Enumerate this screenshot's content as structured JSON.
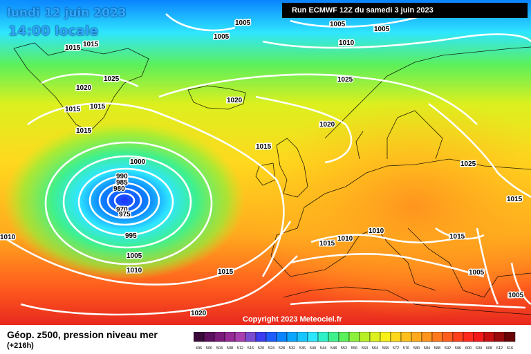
{
  "title": {
    "date": "lundi 12 juin 2023",
    "time": "14:00 locale"
  },
  "run_info": "Run ECMWF 12Z du samedi 3 juin 2023",
  "copyright": "Copyright 2023 Meteociel.fr",
  "footer": {
    "label": "Géop. z500, pression niveau mer",
    "forecast_hour": "(+216h)"
  },
  "pressure_labels": [
    "1015",
    "1015",
    "1005",
    "1005",
    "1005",
    "1005",
    "1010",
    "1020",
    "1025",
    "1025",
    "1015",
    "1015",
    "1015",
    "1020",
    "1020",
    "1015",
    "1000",
    "990",
    "985",
    "980",
    "970",
    "975",
    "995",
    "1005",
    "1010",
    "1010",
    "1015",
    "1015",
    "1010",
    "1010",
    "1020",
    "1005",
    "1005",
    "1015",
    "1025",
    "1015"
  ],
  "legend": {
    "ticks": [
      "496",
      "500",
      "504",
      "508",
      "512",
      "516",
      "520",
      "524",
      "528",
      "532",
      "536",
      "540",
      "544",
      "548",
      "552",
      "556",
      "560",
      "564",
      "568",
      "572",
      "576",
      "580",
      "584",
      "588",
      "592",
      "596",
      "600",
      "604",
      "608",
      "612",
      "616"
    ],
    "colors": [
      "#3a0a3a",
      "#5c0f5c",
      "#7a1a7a",
      "#962a96",
      "#a93fb0",
      "#7a4cd1",
      "#3c3cf0",
      "#1f5cff",
      "#0a84ff",
      "#0aa6ff",
      "#18c6ff",
      "#2fe6ff",
      "#30f0c8",
      "#40f08c",
      "#5cf05a",
      "#8cf03c",
      "#b8f028",
      "#dcf01e",
      "#f7f01a",
      "#ffd81e",
      "#ffc01e",
      "#ffaa1e",
      "#ff941e",
      "#ff7a1e",
      "#ff5e1e",
      "#ff421e",
      "#ff2a1e",
      "#f51a1a",
      "#c80f0f",
      "#9a0a0a",
      "#6a0505"
    ]
  },
  "colors": {
    "isobar": "#ffffff",
    "low_center": "#1e3cff"
  }
}
